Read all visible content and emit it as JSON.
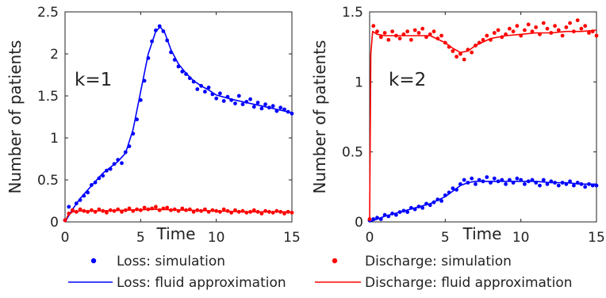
{
  "chart_data": [
    {
      "type": "line",
      "annotation": "k=1",
      "xlabel": "Time",
      "ylabel": "Number of patients",
      "xlim": [
        0,
        15
      ],
      "ylim": [
        0,
        2.5
      ],
      "xticks": [
        "0",
        "5",
        "10",
        "15"
      ],
      "yticks": [
        "0",
        "0.5",
        "1",
        "1.5",
        "2",
        "2.5"
      ],
      "series": [
        {
          "name": "Loss: fluid approximation",
          "kind": "line",
          "color": "#0000ff",
          "x": [
            0,
            0.5,
            1,
            1.5,
            2,
            2.5,
            3,
            3.5,
            4,
            4.5,
            5,
            5.5,
            6,
            6.3,
            6.6,
            7,
            7.5,
            8,
            8.5,
            9,
            9.5,
            10,
            11,
            12,
            13,
            14,
            15
          ],
          "y": [
            0,
            0.15,
            0.28,
            0.38,
            0.48,
            0.58,
            0.65,
            0.72,
            0.82,
            1.1,
            1.55,
            2.0,
            2.27,
            2.32,
            2.25,
            2.05,
            1.88,
            1.77,
            1.68,
            1.62,
            1.57,
            1.51,
            1.46,
            1.42,
            1.38,
            1.34,
            1.3
          ]
        },
        {
          "name": "Discharge: fluid approximation",
          "kind": "line",
          "color": "#ff0000",
          "x": [
            0,
            0.2,
            0.5,
            1,
            2,
            4,
            6,
            8,
            10,
            12,
            15
          ],
          "y": [
            0,
            0.08,
            0.12,
            0.13,
            0.13,
            0.14,
            0.15,
            0.14,
            0.13,
            0.12,
            0.12
          ]
        },
        {
          "name": "Loss: simulation",
          "kind": "scatter",
          "color": "#0000ff",
          "x": [
            0,
            0.25,
            0.5,
            0.75,
            1,
            1.25,
            1.5,
            1.75,
            2,
            2.25,
            2.5,
            2.75,
            3,
            3.25,
            3.5,
            3.75,
            4,
            4.25,
            4.5,
            4.75,
            5,
            5.25,
            5.5,
            5.75,
            6,
            6.25,
            6.5,
            6.75,
            7,
            7.25,
            7.5,
            7.75,
            8,
            8.25,
            8.5,
            8.75,
            9,
            9.25,
            9.5,
            9.75,
            10,
            10.25,
            10.5,
            10.75,
            11,
            11.25,
            11.5,
            11.75,
            12,
            12.25,
            12.5,
            12.75,
            13,
            13.25,
            13.5,
            13.75,
            14,
            14.25,
            14.5,
            14.75,
            15
          ],
          "y": [
            0.02,
            0.18,
            0.14,
            0.22,
            0.26,
            0.31,
            0.35,
            0.44,
            0.47,
            0.52,
            0.55,
            0.61,
            0.63,
            0.69,
            0.74,
            0.7,
            0.83,
            0.9,
            1.05,
            1.22,
            1.45,
            1.68,
            1.95,
            2.15,
            2.28,
            2.33,
            2.27,
            2.16,
            2.02,
            1.93,
            1.85,
            1.79,
            1.76,
            1.71,
            1.67,
            1.58,
            1.62,
            1.55,
            1.6,
            1.52,
            1.47,
            1.53,
            1.44,
            1.49,
            1.45,
            1.41,
            1.5,
            1.4,
            1.43,
            1.46,
            1.37,
            1.42,
            1.35,
            1.4,
            1.36,
            1.38,
            1.32,
            1.36,
            1.34,
            1.31,
            1.29
          ]
        },
        {
          "name": "Discharge: simulation",
          "kind": "scatter",
          "color": "#ff0000",
          "x": [
            0,
            0.25,
            0.5,
            0.75,
            1,
            1.25,
            1.5,
            1.75,
            2,
            2.25,
            2.5,
            2.75,
            3,
            3.25,
            3.5,
            3.75,
            4,
            4.25,
            4.5,
            4.75,
            5,
            5.25,
            5.5,
            5.75,
            6,
            6.25,
            6.5,
            6.75,
            7,
            7.25,
            7.5,
            7.75,
            8,
            8.25,
            8.5,
            8.75,
            9,
            9.25,
            9.5,
            9.75,
            10,
            10.25,
            10.5,
            10.75,
            11,
            11.25,
            11.5,
            11.75,
            12,
            12.25,
            12.5,
            12.75,
            13,
            13.25,
            13.5,
            13.75,
            14,
            14.25,
            14.5,
            14.75,
            15
          ],
          "y": [
            0.02,
            0.1,
            0.14,
            0.12,
            0.15,
            0.13,
            0.12,
            0.14,
            0.12,
            0.15,
            0.13,
            0.11,
            0.14,
            0.13,
            0.15,
            0.12,
            0.14,
            0.16,
            0.13,
            0.15,
            0.14,
            0.17,
            0.15,
            0.16,
            0.18,
            0.14,
            0.16,
            0.17,
            0.14,
            0.15,
            0.13,
            0.16,
            0.14,
            0.15,
            0.12,
            0.14,
            0.13,
            0.15,
            0.12,
            0.14,
            0.13,
            0.12,
            0.15,
            0.13,
            0.11,
            0.14,
            0.12,
            0.13,
            0.11,
            0.12,
            0.14,
            0.12,
            0.1,
            0.13,
            0.12,
            0.11,
            0.13,
            0.12,
            0.1,
            0.12,
            0.11
          ]
        }
      ]
    },
    {
      "type": "line",
      "annotation": "k=2",
      "xlabel": "Time",
      "ylabel": "Number of patients",
      "xlim": [
        0,
        15
      ],
      "ylim": [
        0,
        1.5
      ],
      "xticks": [
        "0",
        "5",
        "10",
        "15"
      ],
      "yticks": [
        "0",
        "0.5",
        "1",
        "1.5"
      ],
      "series": [
        {
          "name": "Loss: fluid approximation",
          "kind": "line",
          "color": "#0000ff",
          "x": [
            0,
            0.5,
            1,
            2,
            3,
            4,
            5,
            5.5,
            6,
            6.5,
            7,
            8,
            9,
            10,
            11,
            12,
            13,
            14,
            15
          ],
          "y": [
            0,
            0.02,
            0.04,
            0.07,
            0.1,
            0.13,
            0.18,
            0.22,
            0.26,
            0.28,
            0.29,
            0.29,
            0.29,
            0.29,
            0.29,
            0.28,
            0.28,
            0.27,
            0.27
          ]
        },
        {
          "name": "Discharge: fluid approximation",
          "kind": "line",
          "color": "#ff0000",
          "x": [
            0,
            0.08,
            0.2,
            0.5,
            1,
            2,
            3,
            4,
            5,
            5.5,
            6,
            6.5,
            7,
            8,
            9,
            10,
            11,
            12,
            13,
            14,
            15
          ],
          "y": [
            0,
            1.2,
            1.36,
            1.34,
            1.33,
            1.33,
            1.33,
            1.33,
            1.28,
            1.24,
            1.21,
            1.22,
            1.26,
            1.31,
            1.33,
            1.34,
            1.35,
            1.35,
            1.36,
            1.36,
            1.37
          ]
        },
        {
          "name": "Loss: simulation",
          "kind": "scatter",
          "color": "#0000ff",
          "x": [
            0,
            0.25,
            0.5,
            0.75,
            1,
            1.25,
            1.5,
            1.75,
            2,
            2.25,
            2.5,
            2.75,
            3,
            3.25,
            3.5,
            3.75,
            4,
            4.25,
            4.5,
            4.75,
            5,
            5.25,
            5.5,
            5.75,
            6,
            6.25,
            6.5,
            6.75,
            7,
            7.25,
            7.5,
            7.75,
            8,
            8.25,
            8.5,
            8.75,
            9,
            9.25,
            9.5,
            9.75,
            10,
            10.25,
            10.5,
            10.75,
            11,
            11.25,
            11.5,
            11.75,
            12,
            12.25,
            12.5,
            12.75,
            13,
            13.25,
            13.5,
            13.75,
            14,
            14.25,
            14.5,
            14.75,
            15
          ],
          "y": [
            0.01,
            0.02,
            0.03,
            0.02,
            0.05,
            0.04,
            0.06,
            0.05,
            0.07,
            0.08,
            0.07,
            0.1,
            0.09,
            0.11,
            0.1,
            0.13,
            0.12,
            0.14,
            0.16,
            0.15,
            0.19,
            0.21,
            0.24,
            0.23,
            0.27,
            0.3,
            0.28,
            0.31,
            0.27,
            0.3,
            0.29,
            0.32,
            0.28,
            0.31,
            0.29,
            0.3,
            0.27,
            0.3,
            0.28,
            0.31,
            0.3,
            0.27,
            0.29,
            0.3,
            0.28,
            0.26,
            0.3,
            0.27,
            0.29,
            0.28,
            0.26,
            0.28,
            0.27,
            0.29,
            0.26,
            0.28,
            0.27,
            0.25,
            0.27,
            0.26,
            0.26
          ]
        },
        {
          "name": "Discharge: simulation",
          "kind": "scatter",
          "color": "#ff0000",
          "x": [
            0,
            0.25,
            0.5,
            0.75,
            1,
            1.25,
            1.5,
            1.75,
            2,
            2.25,
            2.5,
            2.75,
            3,
            3.25,
            3.5,
            3.75,
            4,
            4.25,
            4.5,
            4.75,
            5,
            5.25,
            5.5,
            5.75,
            6,
            6.25,
            6.5,
            6.75,
            7,
            7.25,
            7.5,
            7.75,
            8,
            8.25,
            8.5,
            8.75,
            9,
            9.25,
            9.5,
            9.75,
            10,
            10.25,
            10.5,
            10.75,
            11,
            11.25,
            11.5,
            11.75,
            12,
            12.25,
            12.5,
            12.75,
            13,
            13.25,
            13.5,
            13.75,
            14,
            14.25,
            14.5,
            14.75,
            15
          ],
          "y": [
            0.02,
            1.4,
            1.36,
            1.32,
            1.35,
            1.3,
            1.36,
            1.33,
            1.31,
            1.34,
            1.36,
            1.3,
            1.37,
            1.35,
            1.38,
            1.32,
            1.34,
            1.36,
            1.31,
            1.33,
            1.28,
            1.25,
            1.22,
            1.18,
            1.2,
            1.16,
            1.23,
            1.21,
            1.26,
            1.28,
            1.3,
            1.33,
            1.3,
            1.35,
            1.37,
            1.32,
            1.34,
            1.38,
            1.36,
            1.4,
            1.33,
            1.37,
            1.41,
            1.36,
            1.39,
            1.34,
            1.42,
            1.38,
            1.35,
            1.4,
            1.37,
            1.33,
            1.39,
            1.42,
            1.36,
            1.44,
            1.38,
            1.4,
            1.35,
            1.36,
            1.33
          ]
        }
      ]
    }
  ],
  "legend": {
    "items": [
      {
        "label": "Loss: simulation",
        "color": "#0000ff",
        "marker": "dot"
      },
      {
        "label": "Discharge: simulation",
        "color": "#ff0000",
        "marker": "dot"
      },
      {
        "label": "Loss: fluid approximation",
        "color": "#0000ff",
        "marker": "line"
      },
      {
        "label": "Discharge: fluid approximation",
        "color": "#ff0000",
        "marker": "line"
      }
    ]
  }
}
